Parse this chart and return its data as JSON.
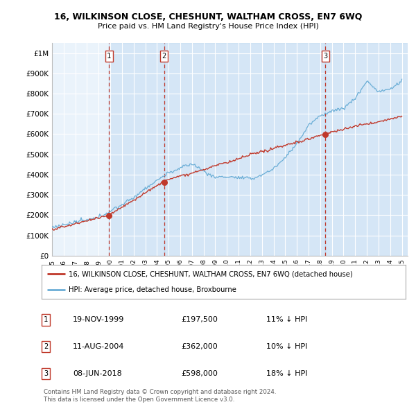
{
  "title": "16, WILKINSON CLOSE, CHESHUNT, WALTHAM CROSS, EN7 6WQ",
  "subtitle": "Price paid vs. HM Land Registry's House Price Index (HPI)",
  "red_line_color": "#c0392b",
  "blue_line_color": "#6baed6",
  "blue_fill_color": "#ddeeff",
  "sale_dates": [
    1999.89,
    2004.61,
    2018.44
  ],
  "sale_prices": [
    197500,
    362000,
    598000
  ],
  "sale_labels": [
    "1",
    "2",
    "3"
  ],
  "yticks": [
    0,
    100000,
    200000,
    300000,
    400000,
    500000,
    600000,
    700000,
    800000,
    900000,
    1000000
  ],
  "ytick_labels": [
    "£0",
    "£100K",
    "£200K",
    "£300K",
    "£400K",
    "£500K",
    "£600K",
    "£700K",
    "£800K",
    "£900K",
    "£1M"
  ],
  "legend_line1": "16, WILKINSON CLOSE, CHESHUNT, WALTHAM CROSS, EN7 6WQ (detached house)",
  "legend_line2": "HPI: Average price, detached house, Broxbourne",
  "table_rows": [
    {
      "num": "1",
      "date": "19-NOV-1999",
      "price": "£197,500",
      "hpi": "11% ↓ HPI"
    },
    {
      "num": "2",
      "date": "11-AUG-2004",
      "price": "£362,000",
      "hpi": "10% ↓ HPI"
    },
    {
      "num": "3",
      "date": "08-JUN-2018",
      "price": "£598,000",
      "hpi": "18% ↓ HPI"
    }
  ],
  "footnote1": "Contains HM Land Registry data © Crown copyright and database right 2024.",
  "footnote2": "This data is licensed under the Open Government Licence v3.0.",
  "background_color": "#ffffff",
  "plot_bg_color": "#eaf3fb",
  "grid_color": "#ffffff",
  "vline_color": "#c0392b",
  "xlim_start": 1995.0,
  "xlim_end": 2025.5,
  "ylim": [
    0,
    1050000
  ]
}
